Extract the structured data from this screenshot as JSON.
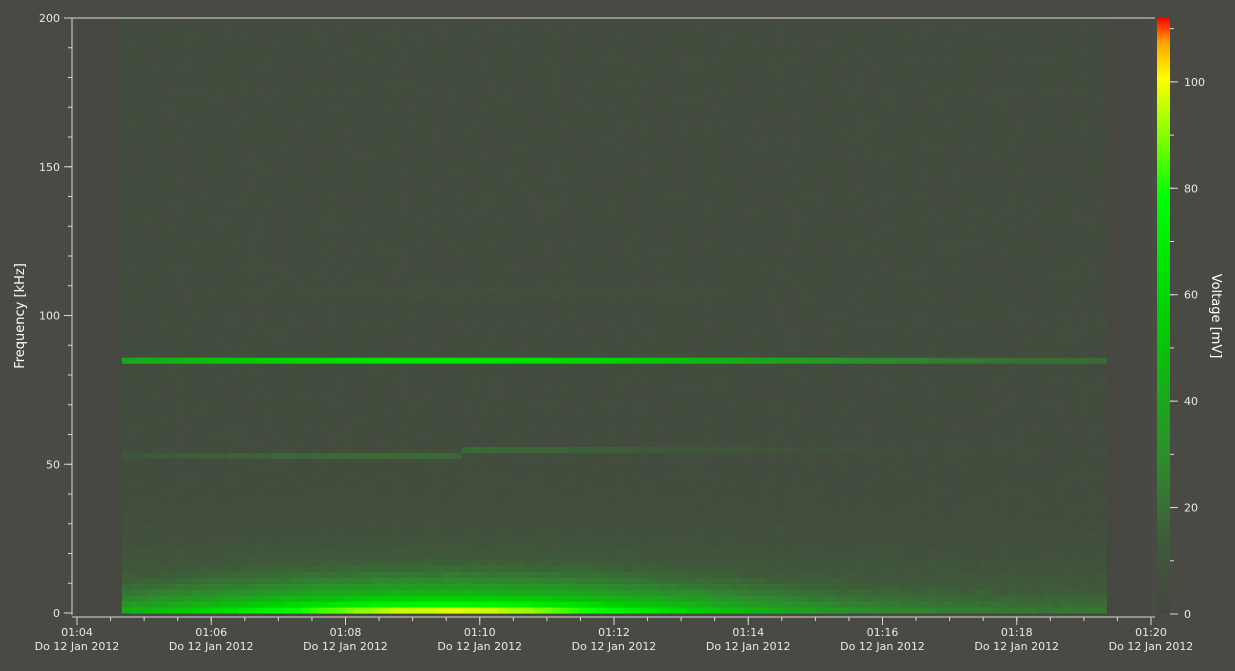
{
  "chart_data": {
    "type": "heatmap",
    "title": "",
    "ylabel": "Frequency [kHz]",
    "colorbar_label": "Voltage [mV]",
    "ylim": [
      0,
      200
    ],
    "y_ticks": [
      0,
      50,
      100,
      150,
      200
    ],
    "y_minor_step": 10,
    "colorbar_range": [
      0,
      112
    ],
    "colorbar_ticks": [
      0,
      20,
      40,
      60,
      80,
      100
    ],
    "colorbar_minor_step": 10,
    "x_ticks": [
      {
        "time": "01:04",
        "date": "Do 12 Jan 2012"
      },
      {
        "time": "01:06",
        "date": "Do 12 Jan 2012"
      },
      {
        "time": "01:08",
        "date": "Do 12 Jan 2012"
      },
      {
        "time": "01:10",
        "date": "Do 12 Jan 2012"
      },
      {
        "time": "01:12",
        "date": "Do 12 Jan 2012"
      },
      {
        "time": "01:14",
        "date": "Do 12 Jan 2012"
      },
      {
        "time": "01:16",
        "date": "Do 12 Jan 2012"
      },
      {
        "time": "01:18",
        "date": "Do 12 Jan 2012"
      },
      {
        "time": "01:20",
        "date": "Do 12 Jan 2012"
      }
    ],
    "xlim": [
      "01:04",
      "01:20"
    ],
    "data_time_range": [
      "01:04:40",
      "01:19:20"
    ],
    "colorscale": [
      "#44463f",
      "#2e8a2e",
      "#00e400",
      "#80ff00",
      "#ffff00",
      "#ffa000",
      "#ff0000"
    ],
    "background_color": "#4a4a44",
    "features": [
      {
        "name": "broadband low-frequency emission",
        "freq_khz": [
          0,
          35
        ],
        "peak_mv": 110,
        "peak_time": "01:09:30"
      },
      {
        "name": "narrowband line",
        "freq_khz": 85,
        "peak_mv": 55
      },
      {
        "name": "narrowband line",
        "freq_khz": 54,
        "peak_mv": 22
      }
    ]
  }
}
